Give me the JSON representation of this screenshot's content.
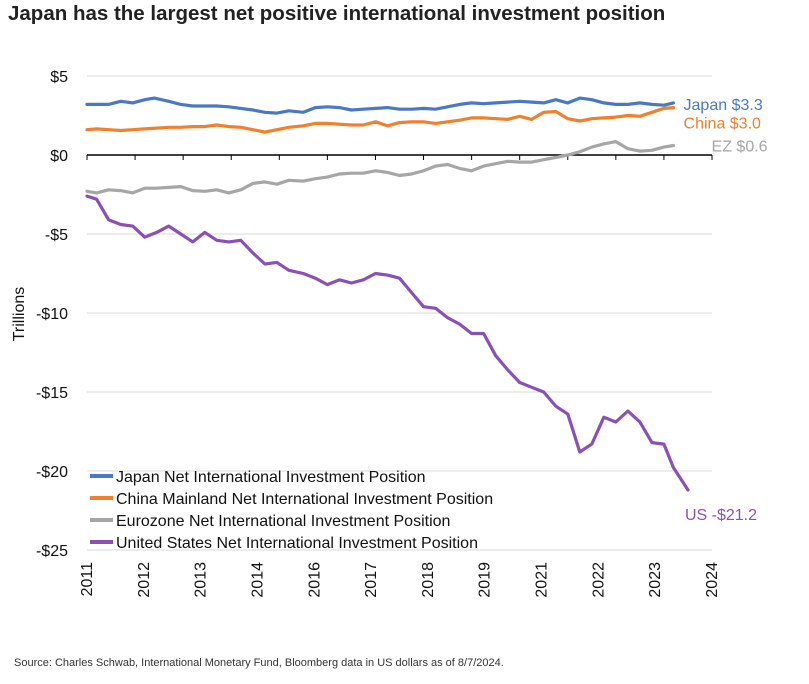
{
  "title": "Japan has the largest net positive international investment position",
  "source": "Source: Charles Schwab, International Monetary Fund, Bloomberg data in US dollars as of 8/7/2024.",
  "colors": {
    "japan": "#4a78c2",
    "china": "#f0802e",
    "eurozone": "#a6a6a6",
    "us": "#8a51b5",
    "grid": "#d9d9d9"
  },
  "chart_data": {
    "type": "line",
    "title": "Japan has the largest net positive international investment position",
    "xlabel": "",
    "ylabel": "Trillions",
    "xlim": [
      2011,
      2024
    ],
    "ylim": [
      -25,
      5
    ],
    "x_ticks": [
      "2011",
      "2012",
      "2013",
      "2014",
      "2016",
      "2017",
      "2018",
      "2019",
      "2021",
      "2022",
      "2023",
      "2024"
    ],
    "y_ticks": [
      {
        "value": 5,
        "label": "$5"
      },
      {
        "value": 0,
        "label": "$0"
      },
      {
        "value": -5,
        "label": "-$5"
      },
      {
        "value": -10,
        "label": "-$10"
      },
      {
        "value": -15,
        "label": "-$15"
      },
      {
        "value": -20,
        "label": "-$20"
      },
      {
        "value": -25,
        "label": "-$25"
      }
    ],
    "grid": "horizontal",
    "legend_position": "bottom-left",
    "series": [
      {
        "name": "Japan Net International Investment Position",
        "color_key": "japan",
        "end_label": "Japan $3.3",
        "x": [
          2011.0,
          2011.2,
          2011.45,
          2011.7,
          2011.95,
          2012.2,
          2012.4,
          2012.7,
          2012.95,
          2013.2,
          2013.45,
          2013.7,
          2013.95,
          2014.2,
          2014.45,
          2014.7,
          2014.95,
          2015.2,
          2015.5,
          2015.75,
          2016.0,
          2016.25,
          2016.5,
          2016.75,
          2017.0,
          2017.25,
          2017.5,
          2017.75,
          2018.0,
          2018.25,
          2018.5,
          2018.75,
          2019.0,
          2019.25,
          2019.5,
          2019.75,
          2020.0,
          2020.25,
          2020.5,
          2020.75,
          2021.0,
          2021.25,
          2021.5,
          2021.75,
          2022.0,
          2022.25,
          2022.5,
          2022.75,
          2023.0,
          2023.2
        ],
        "values": [
          3.2,
          3.2,
          3.2,
          3.4,
          3.3,
          3.5,
          3.6,
          3.4,
          3.2,
          3.1,
          3.1,
          3.1,
          3.05,
          2.95,
          2.85,
          2.7,
          2.65,
          2.8,
          2.7,
          3.0,
          3.05,
          3.0,
          2.85,
          2.9,
          2.95,
          3.0,
          2.9,
          2.9,
          2.95,
          2.9,
          3.05,
          3.2,
          3.3,
          3.25,
          3.3,
          3.35,
          3.4,
          3.35,
          3.3,
          3.5,
          3.3,
          3.6,
          3.5,
          3.3,
          3.2,
          3.2,
          3.3,
          3.2,
          3.15,
          3.3
        ]
      },
      {
        "name": "China Mainland Net International Investment Position",
        "color_key": "china",
        "end_label": "China $3.0",
        "x": [
          2011.0,
          2011.2,
          2011.45,
          2011.7,
          2011.95,
          2012.2,
          2012.45,
          2012.7,
          2012.95,
          2013.2,
          2013.45,
          2013.7,
          2013.95,
          2014.2,
          2014.45,
          2014.7,
          2014.95,
          2015.2,
          2015.5,
          2015.75,
          2016.0,
          2016.25,
          2016.5,
          2016.75,
          2017.0,
          2017.25,
          2017.5,
          2017.75,
          2018.0,
          2018.25,
          2018.5,
          2018.75,
          2019.0,
          2019.25,
          2019.5,
          2019.75,
          2020.0,
          2020.25,
          2020.5,
          2020.75,
          2021.0,
          2021.25,
          2021.5,
          2021.75,
          2022.0,
          2022.25,
          2022.5,
          2022.75,
          2023.0,
          2023.2
        ],
        "values": [
          1.6,
          1.65,
          1.6,
          1.55,
          1.6,
          1.65,
          1.7,
          1.75,
          1.75,
          1.8,
          1.8,
          1.9,
          1.8,
          1.75,
          1.6,
          1.45,
          1.6,
          1.75,
          1.85,
          2.0,
          2.0,
          1.95,
          1.9,
          1.9,
          2.1,
          1.85,
          2.05,
          2.1,
          2.1,
          2.0,
          2.1,
          2.2,
          2.35,
          2.35,
          2.3,
          2.25,
          2.45,
          2.25,
          2.7,
          2.75,
          2.3,
          2.15,
          2.3,
          2.35,
          2.4,
          2.5,
          2.45,
          2.7,
          2.95,
          3.0
        ]
      },
      {
        "name": "Eurozone Net International Investment Position",
        "color_key": "eurozone",
        "end_label": "EZ $0.6",
        "x": [
          2011.0,
          2011.2,
          2011.45,
          2011.7,
          2011.95,
          2012.2,
          2012.45,
          2012.7,
          2012.95,
          2013.2,
          2013.45,
          2013.7,
          2013.95,
          2014.2,
          2014.45,
          2014.7,
          2014.95,
          2015.2,
          2015.5,
          2015.75,
          2016.0,
          2016.25,
          2016.5,
          2016.75,
          2017.0,
          2017.25,
          2017.5,
          2017.75,
          2018.0,
          2018.25,
          2018.5,
          2018.75,
          2019.0,
          2019.25,
          2019.5,
          2019.75,
          2020.0,
          2020.25,
          2020.5,
          2020.75,
          2021.0,
          2021.25,
          2021.5,
          2021.75,
          2022.0,
          2022.25,
          2022.5,
          2022.75,
          2023.0,
          2023.2
        ],
        "values": [
          -2.3,
          -2.4,
          -2.2,
          -2.25,
          -2.4,
          -2.1,
          -2.1,
          -2.05,
          -2.0,
          -2.25,
          -2.3,
          -2.2,
          -2.4,
          -2.2,
          -1.8,
          -1.7,
          -1.85,
          -1.6,
          -1.65,
          -1.5,
          -1.4,
          -1.2,
          -1.15,
          -1.15,
          -1.0,
          -1.1,
          -1.3,
          -1.2,
          -1.0,
          -0.7,
          -0.6,
          -0.85,
          -1.0,
          -0.7,
          -0.55,
          -0.4,
          -0.45,
          -0.45,
          -0.3,
          -0.15,
          0.0,
          0.2,
          0.5,
          0.7,
          0.85,
          0.4,
          0.25,
          0.3,
          0.5,
          0.6
        ]
      },
      {
        "name": "United States Net International Investment Position",
        "color_key": "us",
        "end_label": "US -$21.2",
        "x": [
          2011.0,
          2011.2,
          2011.45,
          2011.7,
          2011.95,
          2012.2,
          2012.45,
          2012.7,
          2012.95,
          2013.2,
          2013.45,
          2013.7,
          2013.95,
          2014.2,
          2014.45,
          2014.7,
          2014.95,
          2015.2,
          2015.5,
          2015.75,
          2016.0,
          2016.25,
          2016.5,
          2016.75,
          2017.0,
          2017.25,
          2017.5,
          2017.75,
          2018.0,
          2018.25,
          2018.5,
          2018.75,
          2019.0,
          2019.25,
          2019.5,
          2019.75,
          2020.0,
          2020.25,
          2020.5,
          2020.75,
          2021.0,
          2021.25,
          2021.5,
          2021.75,
          2022.0,
          2022.25,
          2022.5,
          2022.75,
          2023.0,
          2023.2,
          2023.5
        ],
        "values": [
          -2.6,
          -2.8,
          -4.1,
          -4.4,
          -4.5,
          -5.2,
          -4.9,
          -4.5,
          -5.0,
          -5.5,
          -4.9,
          -5.4,
          -5.5,
          -5.4,
          -6.2,
          -6.9,
          -6.8,
          -7.3,
          -7.5,
          -7.8,
          -8.2,
          -7.9,
          -8.1,
          -7.9,
          -7.5,
          -7.6,
          -7.8,
          -8.7,
          -9.6,
          -9.7,
          -10.3,
          -10.7,
          -11.3,
          -11.3,
          -12.7,
          -13.6,
          -14.4,
          -14.7,
          -15.0,
          -15.9,
          -16.4,
          -18.8,
          -18.3,
          -16.6,
          -16.9,
          -16.2,
          -16.9,
          -18.2,
          -18.3,
          -19.8,
          -21.2
        ]
      }
    ]
  }
}
